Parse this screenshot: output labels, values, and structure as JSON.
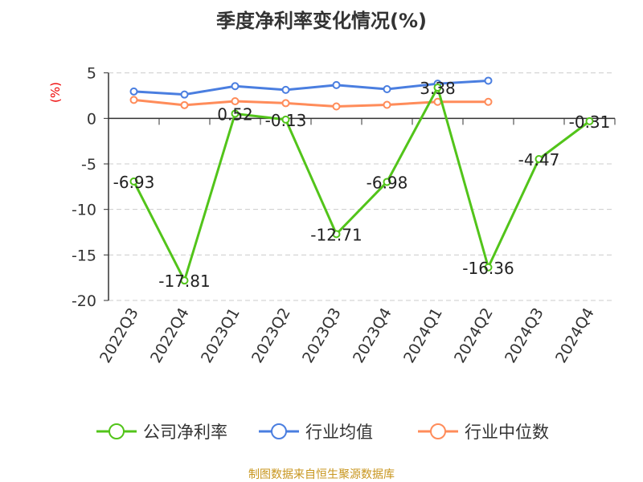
{
  "chart_data": {
    "type": "line",
    "title": "季度净利率变化情况(%)",
    "ylabel": "(%)",
    "ylim": [
      -20,
      5
    ],
    "yticks": [
      5,
      0,
      -5,
      -10,
      -15,
      -20
    ],
    "grid": true,
    "legend_position": "bottom",
    "categories": [
      "2022Q3",
      "2022Q4",
      "2023Q1",
      "2023Q2",
      "2023Q3",
      "2023Q4",
      "2024Q1",
      "2024Q2",
      "2024Q3",
      "2024Q4"
    ],
    "series": [
      {
        "name": "公司净利率",
        "color": "#52c41a",
        "values": [
          -6.93,
          -17.81,
          0.52,
          -0.13,
          -12.71,
          -6.98,
          3.38,
          -16.36,
          -4.47,
          -0.31
        ],
        "labels": [
          "-6.93",
          "-17.81",
          "0.52",
          "-0.13",
          "-12.71",
          "-6.98",
          "3.38",
          "-16.36",
          "-4.47",
          "-0.31"
        ]
      },
      {
        "name": "行业均值",
        "color": "#4a7ee0",
        "values": [
          2.95,
          2.62,
          3.54,
          3.13,
          3.66,
          3.21,
          3.81,
          4.14,
          null,
          null
        ]
      },
      {
        "name": "行业中位数",
        "color": "#ff8c5a",
        "values": [
          2.03,
          1.46,
          1.88,
          1.67,
          1.31,
          1.49,
          1.82,
          1.82,
          null,
          null
        ]
      }
    ]
  },
  "source": "制图数据来自恒生聚源数据库"
}
